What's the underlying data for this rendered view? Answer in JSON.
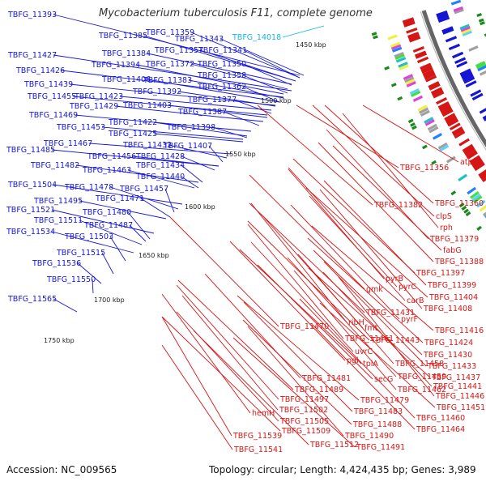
{
  "title": "Mycobacterium tuberculosis F11, complete genome",
  "accession": "Accession: NC_009565",
  "summary": "Topology: circular; Length: 4,424,435 bp; Genes: 3,989",
  "colors": {
    "forward": "#1515d6",
    "reverse": "#d61515",
    "highlight": "#12b8e6",
    "backbone": "#666666",
    "tick": "#222222"
  },
  "kbp_marks": [
    {
      "label": "1450 kbp",
      "kb": 1450
    },
    {
      "label": "1500 kbp",
      "kb": 1500
    },
    {
      "label": "1550 kbp",
      "kb": 1550
    },
    {
      "label": "1600 kbp",
      "kb": 1600
    },
    {
      "label": "1650 kbp",
      "kb": 1650
    },
    {
      "label": "1700 kbp",
      "kb": 1700
    },
    {
      "label": "1750 kbp",
      "kb": 1750
    }
  ],
  "left_labels": [
    "TBFG_11393",
    "TBFG_11385",
    "TBFG_11359",
    "TBFG_11343",
    "TBFG_11427",
    "TBFG_11384",
    "TBFG_11357",
    "TBFG_11341",
    "TBFG_11426",
    "TBFG_11394",
    "TBFG_11372",
    "TBFG_11350",
    "TBFG_11439",
    "TBFG_11406",
    "TBFG_11383",
    "TBFG_11358",
    "TBFG_11455",
    "TBFG_11423",
    "TBFG_11392",
    "TBFG_11362",
    "TBFG_11429",
    "TBFG_11403",
    "TBFG_11377",
    "TBFG_11469",
    "TBFG_11387",
    "TBFG_11453",
    "TBFG_11422",
    "TBFG_11425",
    "TBFG_11398",
    "TBFG_11467",
    "TBFG_11432",
    "TBFG_11485",
    "TBFG_11456",
    "TBFG_11407",
    "TBFG_11428",
    "TBFG_11482",
    "TBFG_11463",
    "TBFG_11434",
    "TBFG_11440",
    "TBFG_11504",
    "TBFG_11478",
    "TBFG_11495",
    "TBFG_11457",
    "TBFG_11471",
    "TBFG_11521",
    "TBFG_11480",
    "TBFG_11511",
    "TBFG_11487",
    "TBFG_11534",
    "TBFG_11503",
    "TBFG_11515",
    "TBFG_11536",
    "TBFG_11550",
    "TBFG_11565"
  ],
  "highlight_label": "TBFG_14018",
  "right_labels": [
    "atpC",
    "TBFG_11356",
    "TBFG_11360",
    "TBFG_11382",
    "clpS",
    "rph",
    "TBFG_11379",
    "fabG",
    "TBFG_11388",
    "TBFG_11397",
    "pyrB",
    "TBFG_11399",
    "pyrC",
    "gmk",
    "TBFG_11404",
    "carB",
    "TBFG_11408",
    "pyrF",
    "TBFG_11431",
    "TBFG_11416",
    "ribH",
    "fmt",
    "TBFG_11470",
    "TBFG_11424",
    "TBFG_11443",
    "TBFG_11461",
    "uvrC",
    "TBFG_11430",
    "pgl",
    "tpiA",
    "TBFG_11458",
    "TBFG_11433",
    "TBFG_11459",
    "secG",
    "TBFG_11437",
    "TBFG_11481",
    "TBFG_11462",
    "TBFG_11441",
    "TBFG_11489",
    "TBFG_11479",
    "TBFG_11446",
    "TBFG_11497",
    "TBFG_11483",
    "TBFG_11451",
    "hemH",
    "TBFG_11502",
    "TBFG_11505",
    "TBFG_11488",
    "TBFG_11460",
    "TBFG_11509",
    "TBFG_11490",
    "TBFG_11464",
    "TBFG_11539",
    "TBFG_11512",
    "TBFG_11491",
    "TBFG_11541"
  ]
}
